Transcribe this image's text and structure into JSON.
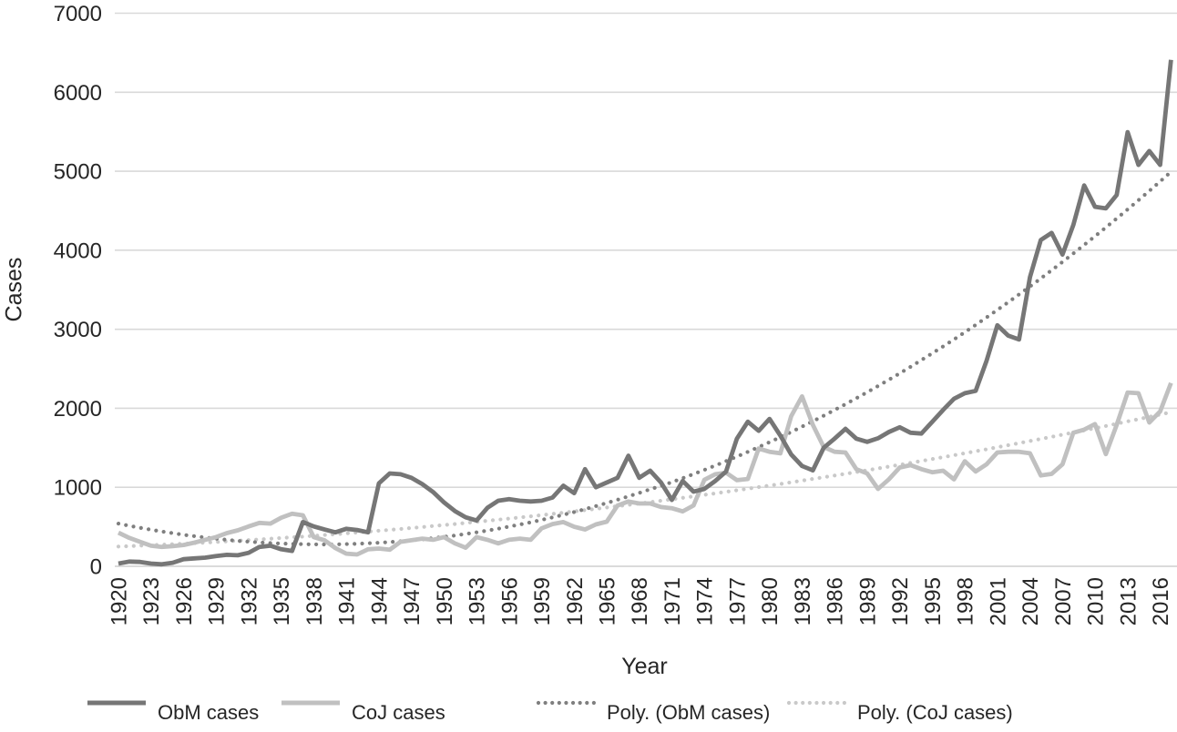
{
  "chart_data": {
    "type": "line",
    "title": "",
    "xlabel": "Year",
    "ylabel": "Cases",
    "x_start": 1920,
    "x_end": 2017,
    "ylim": [
      0,
      7000
    ],
    "y_tick_labels": [
      "0",
      "1000",
      "2000",
      "3000",
      "4000",
      "5000",
      "6000",
      "7000"
    ],
    "x_tick_labels": [
      "1920",
      "1923",
      "1926",
      "1929",
      "1932",
      "1935",
      "1938",
      "1941",
      "1944",
      "1947",
      "1950",
      "1953",
      "1956",
      "1959",
      "1962",
      "1965",
      "1968",
      "1971",
      "1974",
      "1977",
      "1980",
      "1983",
      "1986",
      "1989",
      "1992",
      "1995",
      "1998",
      "2001",
      "2004",
      "2007",
      "2010",
      "2013",
      "2016"
    ],
    "grid": "horizontal",
    "legend_position": "bottom",
    "series": [
      {
        "name": "ObM cases",
        "style": "solid",
        "color": "#767676",
        "values": [
          35,
          60,
          55,
          35,
          25,
          45,
          90,
          100,
          110,
          130,
          145,
          140,
          170,
          245,
          260,
          215,
          195,
          560,
          505,
          465,
          430,
          475,
          460,
          430,
          1050,
          1175,
          1165,
          1120,
          1040,
          940,
          810,
          700,
          620,
          580,
          740,
          830,
          850,
          830,
          820,
          830,
          870,
          1020,
          925,
          1230,
          1000,
          1060,
          1120,
          1400,
          1120,
          1210,
          1060,
          840,
          1080,
          945,
          980,
          1080,
          1200,
          1615,
          1830,
          1715,
          1865,
          1655,
          1415,
          1270,
          1215,
          1500,
          1615,
          1740,
          1615,
          1575,
          1620,
          1700,
          1760,
          1690,
          1680,
          1830,
          1980,
          2120,
          2190,
          2220,
          2600,
          3050,
          2920,
          2870,
          3660,
          4130,
          4220,
          3945,
          4320,
          4820,
          4550,
          4530,
          4700,
          5495,
          5080,
          5255,
          5080,
          6410
        ]
      },
      {
        "name": "CoJ cases",
        "style": "solid",
        "color": "#C0C0C0",
        "values": [
          425,
          360,
          310,
          260,
          245,
          255,
          270,
          300,
          335,
          370,
          420,
          455,
          505,
          550,
          540,
          615,
          665,
          645,
          370,
          330,
          230,
          160,
          150,
          215,
          225,
          210,
          310,
          330,
          350,
          335,
          370,
          290,
          235,
          370,
          335,
          290,
          335,
          350,
          335,
          480,
          535,
          560,
          500,
          465,
          530,
          565,
          770,
          820,
          795,
          795,
          750,
          735,
          695,
          770,
          1095,
          1165,
          1185,
          1090,
          1105,
          1490,
          1450,
          1430,
          1900,
          2150,
          1790,
          1510,
          1450,
          1440,
          1230,
          1175,
          980,
          1100,
          1250,
          1280,
          1230,
          1190,
          1210,
          1100,
          1330,
          1200,
          1290,
          1440,
          1450,
          1450,
          1430,
          1150,
          1170,
          1290,
          1690,
          1730,
          1800,
          1420,
          1790,
          2200,
          2190,
          1820,
          1960,
          2320
        ]
      },
      {
        "name": "Poly. (ObM cases)",
        "style": "dotted",
        "color": "#7F7F7F",
        "values": [
          540,
          513,
          487,
          463,
          440,
          419,
          399,
          381,
          364,
          349,
          335,
          322,
          312,
          302,
          294,
          288,
          283,
          280,
          278,
          277,
          278,
          281,
          285,
          291,
          298,
          306,
          317,
          328,
          341,
          356,
          372,
          390,
          409,
          430,
          452,
          476,
          502,
          529,
          557,
          588,
          619,
          652,
          687,
          724,
          762,
          801,
          842,
          885,
          929,
          975,
          1017,
          1065,
          1115,
          1167,
          1220,
          1274,
          1331,
          1388,
          1448,
          1509,
          1571,
          1635,
          1700,
          1767,
          1836,
          1906,
          1978,
          2052,
          2127,
          2203,
          2281,
          2361,
          2442,
          2525,
          2610,
          2696,
          2783,
          2872,
          2963,
          3055,
          3149,
          3245,
          3342,
          3441,
          3541,
          3643,
          3747,
          3852,
          3959,
          4067,
          4177,
          4289,
          4402,
          4517,
          4633,
          4751,
          4871,
          4993
        ]
      },
      {
        "name": "Poly. (CoJ cases)",
        "style": "dotted",
        "color": "#C9C9C9",
        "values": [
          250,
          255,
          261,
          267,
          273,
          280,
          286,
          293,
          300,
          308,
          316,
          324,
          332,
          340,
          349,
          358,
          367,
          376,
          386,
          396,
          406,
          417,
          428,
          439,
          450,
          461,
          473,
          485,
          497,
          510,
          522,
          535,
          549,
          562,
          576,
          590,
          604,
          619,
          633,
          648,
          664,
          679,
          695,
          711,
          727,
          744,
          761,
          778,
          795,
          812,
          830,
          848,
          867,
          885,
          904,
          923,
          942,
          962,
          982,
          1002,
          1022,
          1042,
          1063,
          1084,
          1106,
          1127,
          1149,
          1171,
          1193,
          1216,
          1239,
          1262,
          1285,
          1309,
          1333,
          1357,
          1381,
          1406,
          1431,
          1456,
          1481,
          1507,
          1532,
          1559,
          1585,
          1612,
          1638,
          1666,
          1693,
          1720,
          1748,
          1776,
          1805,
          1834,
          1862,
          1892,
          1921,
          1951
        ]
      }
    ]
  },
  "colors": {
    "background": "#FFFFFF",
    "gridline": "#D9D9D9",
    "zero_line": "#CFCFCF",
    "axis_text": "#262626"
  }
}
